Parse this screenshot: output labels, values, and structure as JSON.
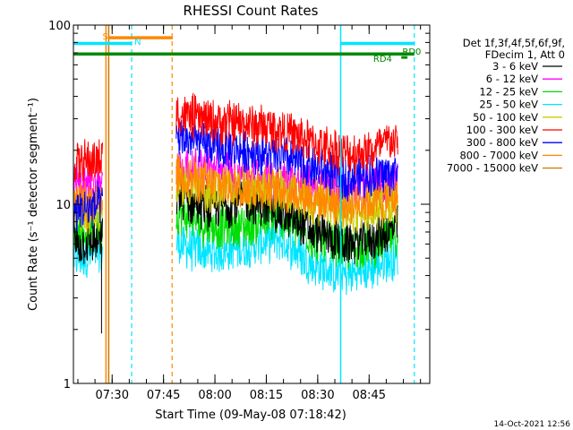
{
  "chart_data": {
    "type": "line",
    "title": "RHESSI Count Rates",
    "xlabel": "Start Time (09-May-08 07:18:42)",
    "ylabel": "Count Rate (s⁻¹ detector segment⁻¹)",
    "yscale": "log",
    "ylim": [
      1,
      100
    ],
    "xlim_minutes": [
      0,
      104
    ],
    "y_ticks": [
      {
        "value": 1,
        "label": "1"
      },
      {
        "value": 10,
        "label": "10"
      },
      {
        "value": 100,
        "label": "100"
      }
    ],
    "x_ticks": [
      {
        "t": 11.3,
        "label": "07:30"
      },
      {
        "t": 26.3,
        "label": "07:45"
      },
      {
        "t": 41.3,
        "label": "08:00"
      },
      {
        "t": 56.3,
        "label": "08:15"
      },
      {
        "t": 71.3,
        "label": "08:30"
      },
      {
        "t": 86.3,
        "label": "08:45"
      }
    ],
    "legend_header": [
      "Det 1f,3f,4f,5f,6f,9f,",
      "FDecim 1, Att 0"
    ],
    "gap": [
      8.5,
      30.0
    ],
    "series": [
      {
        "name": "3 - 6 keV",
        "color": "#000000",
        "points": [
          [
            0,
            6.0
          ],
          [
            8.5,
            6.2
          ],
          [
            30,
            11
          ],
          [
            40,
            9.5
          ],
          [
            50,
            10.5
          ],
          [
            60,
            9
          ],
          [
            70,
            7
          ],
          [
            80,
            6
          ],
          [
            88,
            6.5
          ],
          [
            95,
            7.5
          ]
        ]
      },
      {
        "name": "6 - 12 keV",
        "color": "#ff00ff",
        "points": [
          [
            0,
            13
          ],
          [
            8.5,
            13
          ],
          [
            30,
            16
          ],
          [
            40,
            15.5
          ],
          [
            50,
            15
          ],
          [
            60,
            14
          ],
          [
            70,
            13
          ],
          [
            80,
            12
          ],
          [
            88,
            12.5
          ],
          [
            95,
            13.5
          ]
        ]
      },
      {
        "name": "12 - 25 keV",
        "color": "#00dd00",
        "points": [
          [
            0,
            7
          ],
          [
            8.5,
            7
          ],
          [
            30,
            9
          ],
          [
            40,
            7.5
          ],
          [
            50,
            7.5
          ],
          [
            60,
            8.5
          ],
          [
            70,
            6.5
          ],
          [
            80,
            5.5
          ],
          [
            88,
            6
          ],
          [
            95,
            6.8
          ]
        ]
      },
      {
        "name": "25 - 50 keV",
        "color": "#00e5ff",
        "points": [
          [
            0,
            5
          ],
          [
            8.5,
            5.3
          ],
          [
            30,
            6
          ],
          [
            40,
            5.3
          ],
          [
            50,
            5.8
          ],
          [
            60,
            6.5
          ],
          [
            70,
            4.5
          ],
          [
            80,
            4.0
          ],
          [
            88,
            4.5
          ],
          [
            95,
            5.2
          ]
        ]
      },
      {
        "name": "50 - 100 keV",
        "color": "#cccc00",
        "points": [
          [
            0,
            9
          ],
          [
            8.5,
            9
          ],
          [
            30,
            13
          ],
          [
            40,
            12
          ],
          [
            50,
            12.5
          ],
          [
            60,
            12
          ],
          [
            70,
            10
          ],
          [
            80,
            9
          ],
          [
            88,
            9.5
          ],
          [
            95,
            10.5
          ]
        ]
      },
      {
        "name": "100 - 300 keV",
        "color": "#ff0000",
        "points": [
          [
            0,
            17
          ],
          [
            8.5,
            17.5
          ],
          [
            30,
            32
          ],
          [
            40,
            29
          ],
          [
            50,
            28
          ],
          [
            60,
            26
          ],
          [
            70,
            22
          ],
          [
            80,
            19
          ],
          [
            88,
            20
          ],
          [
            93,
            23
          ],
          [
            95,
            21
          ]
        ]
      },
      {
        "name": "300 - 800 keV",
        "color": "#0000ff",
        "points": [
          [
            0,
            9
          ],
          [
            8.5,
            10
          ],
          [
            30,
            24
          ],
          [
            40,
            21
          ],
          [
            50,
            20
          ],
          [
            60,
            18.5
          ],
          [
            70,
            16
          ],
          [
            80,
            14
          ],
          [
            88,
            14.5
          ],
          [
            95,
            15
          ]
        ]
      },
      {
        "name": "800 - 7000 keV",
        "color": "#ff8800",
        "points": [
          [
            0,
            10
          ],
          [
            8.5,
            10
          ],
          [
            30,
            15
          ],
          [
            40,
            13
          ],
          [
            50,
            12.5
          ],
          [
            60,
            12.2
          ],
          [
            70,
            11
          ],
          [
            80,
            10
          ],
          [
            88,
            10.5
          ],
          [
            95,
            11
          ]
        ]
      },
      {
        "name": "7000 - 15000 keV",
        "color": "#cc7a00",
        "points": []
      }
    ],
    "annotations": [
      {
        "text": "S",
        "color": "#ff8800"
      },
      {
        "text": "N",
        "color": "#00e5ff"
      },
      {
        "text": "RD0",
        "color": "#008800"
      },
      {
        "text": "RD4",
        "color": "#008800"
      }
    ],
    "flag_intervals": [
      {
        "name": "S",
        "color": "#ff8800",
        "start": 10.3,
        "end": 29.0,
        "y_value": 85
      },
      {
        "name": "N",
        "color": "#00e5ff",
        "start": 0,
        "end": 17.0,
        "y_value": 79
      },
      {
        "name": "N",
        "color": "#00e5ff",
        "start": 78.0,
        "end": 99.5,
        "y_value": 79
      },
      {
        "name": "RD0",
        "color": "#008800",
        "start": 0,
        "end": 99.5,
        "y_value": 69
      },
      {
        "name": "RD4",
        "color": "#008800",
        "start": 95.7,
        "end": 97.5,
        "y_value": 66
      }
    ],
    "vertical_markers": [
      {
        "t": 9.5,
        "color": "#ff8800",
        "style": "solid"
      },
      {
        "t": 10.3,
        "color": "#cc7a00",
        "style": "solid"
      },
      {
        "t": 17.0,
        "color": "#00e5ff",
        "style": "dashed"
      },
      {
        "t": 28.8,
        "color": "#ff8800",
        "style": "dashed"
      },
      {
        "t": 78.0,
        "color": "#00e5ff",
        "style": "solid"
      },
      {
        "t": 99.5,
        "color": "#00e5ff",
        "style": "dashed"
      }
    ],
    "footer": "14-Oct-2021 12:56"
  }
}
